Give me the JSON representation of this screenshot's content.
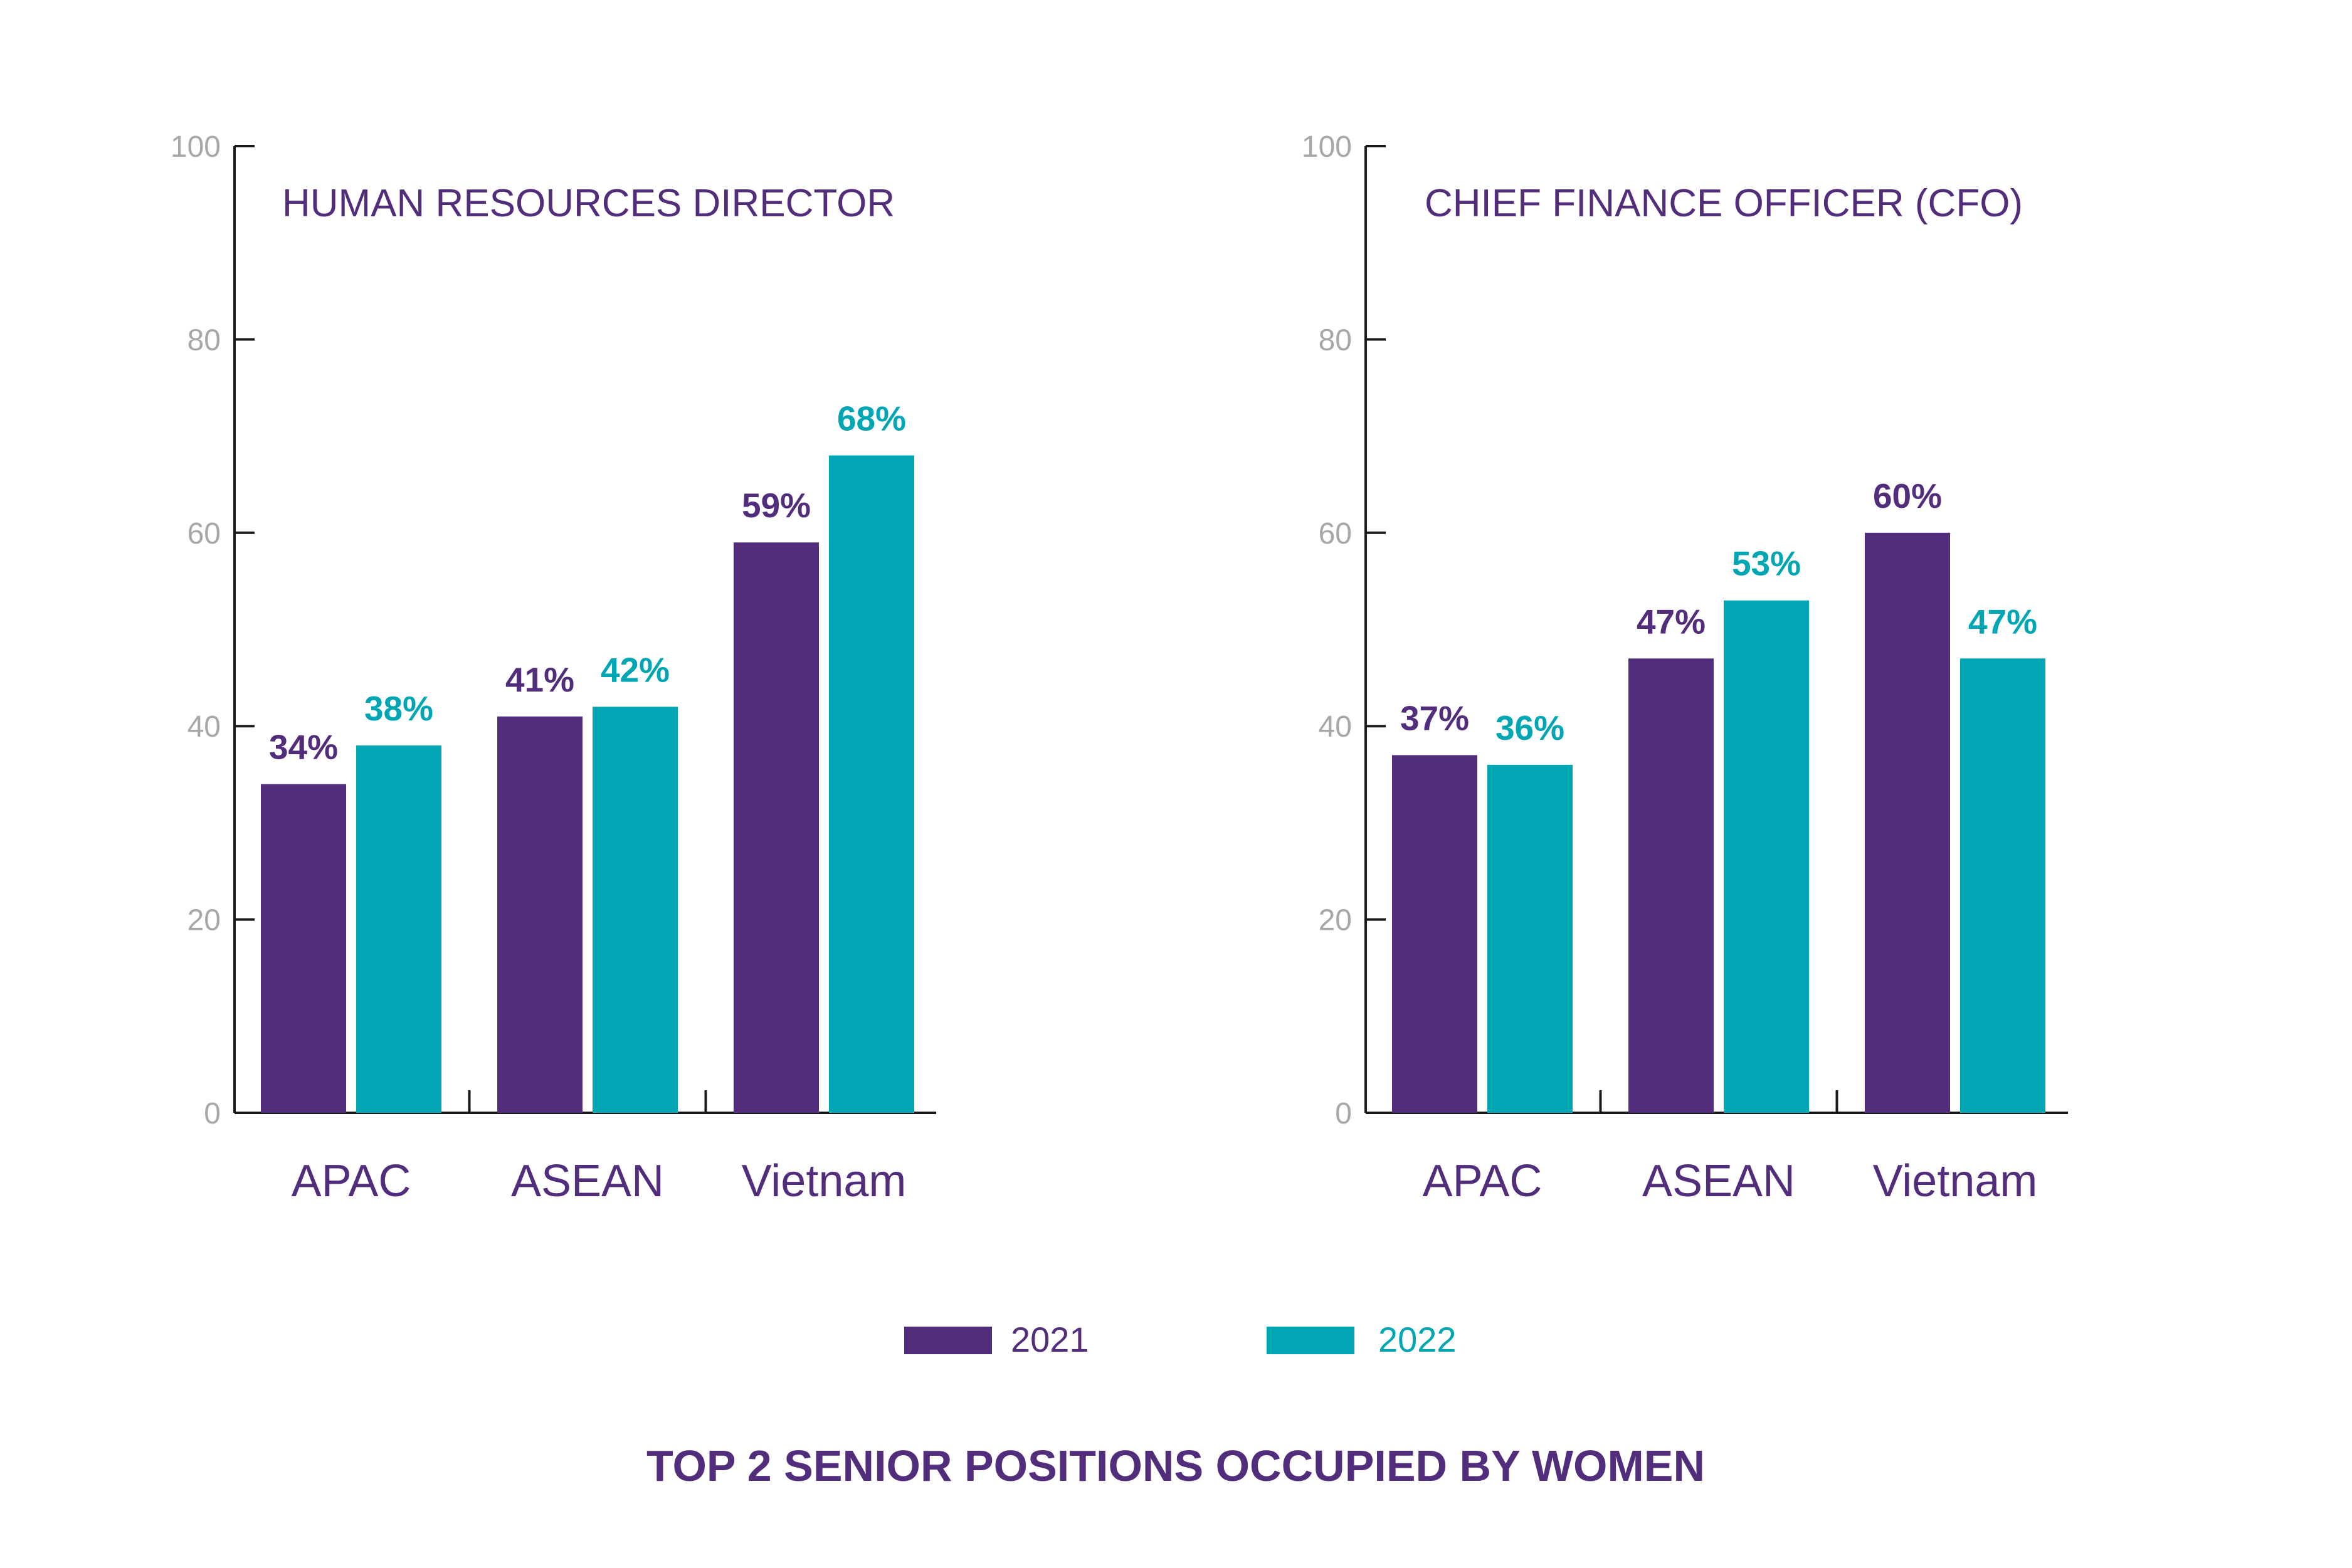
{
  "title": "TOP 2 SENIOR POSITIONS OCCUPIED BY WOMEN",
  "colors": {
    "series_2021": "#512d7c",
    "series_2022": "#00a6b3",
    "tick": "#a7a7a7",
    "axis": "#1a1a1a"
  },
  "legend": [
    {
      "name": "2021",
      "color": "#512d7c"
    },
    {
      "name": "2022",
      "color": "#00a6b3"
    }
  ],
  "chart_data": [
    {
      "type": "bar",
      "title": "HUMAN RESOURCES DIRECTOR",
      "categories": [
        "APAC",
        "ASEAN",
        "Vietnam"
      ],
      "series": [
        {
          "name": "2021",
          "values": [
            34,
            41,
            59
          ],
          "labels": [
            "34%",
            "41%",
            "59%"
          ]
        },
        {
          "name": "2022",
          "values": [
            38,
            42,
            68
          ],
          "labels": [
            "38%",
            "42%",
            "68%"
          ]
        }
      ],
      "ylim": [
        0,
        100
      ],
      "yticks": [
        0,
        20,
        40,
        60,
        80,
        100
      ],
      "ytick_labels": [
        "0",
        "20",
        "40",
        "60",
        "80",
        "100"
      ],
      "grid": false,
      "legend_position": "bottom-center"
    },
    {
      "type": "bar",
      "title": "CHIEF FINANCE OFFICER (CFO)",
      "categories": [
        "APAC",
        "ASEAN",
        "Vietnam"
      ],
      "series": [
        {
          "name": "2021",
          "values": [
            37,
            47,
            60
          ],
          "labels": [
            "37%",
            "47%",
            "60%"
          ]
        },
        {
          "name": "2022",
          "values": [
            36,
            53,
            47
          ],
          "labels": [
            "36%",
            "53%",
            "47%"
          ]
        }
      ],
      "ylim": [
        0,
        100
      ],
      "yticks": [
        0,
        20,
        40,
        60,
        80,
        100
      ],
      "ytick_labels": [
        "0",
        "20",
        "40",
        "60",
        "80",
        "100"
      ],
      "grid": false,
      "legend_position": "bottom-center"
    }
  ]
}
